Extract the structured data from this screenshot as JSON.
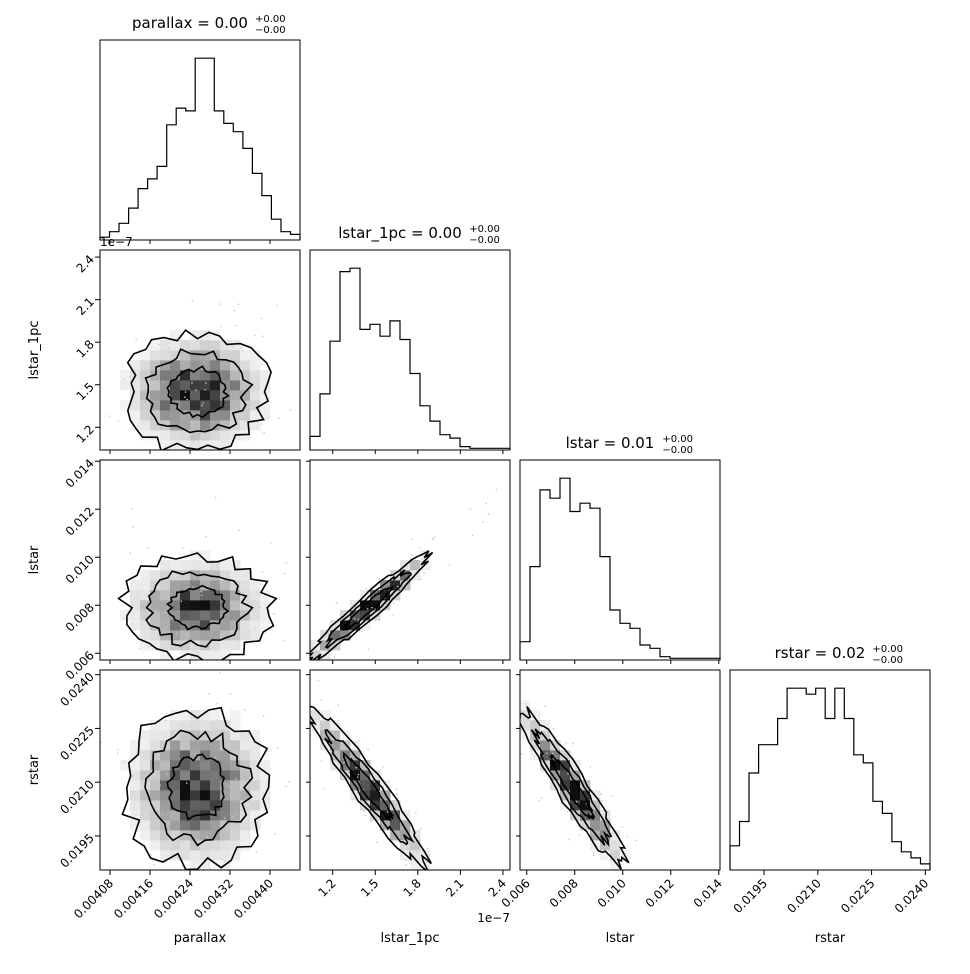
{
  "chart_data": {
    "type": "corner",
    "parameters": [
      {
        "key": "parallax",
        "label": "parallax",
        "title_main": "parallax = 0.00",
        "title_up": "+0.00",
        "title_low": "−0.00",
        "range": [
          0.00406,
          0.00446
        ],
        "ticks": [
          {
            "v": 0.00408,
            "t": "0.00408"
          },
          {
            "v": 0.00416,
            "t": "0.00416"
          },
          {
            "v": 0.00424,
            "t": "0.00424"
          },
          {
            "v": 0.00432,
            "t": "0.00432"
          },
          {
            "v": 0.0044,
            "t": "0.00440"
          }
        ],
        "offset_text": "",
        "hist": [
          2,
          6,
          12,
          23,
          37,
          44,
          53,
          83,
          95,
          93,
          131,
          131,
          93,
          84,
          78,
          66,
          48,
          32,
          15,
          6,
          4
        ],
        "center": 0.004255,
        "sd": 6.2e-05
      },
      {
        "key": "lstar_1pc",
        "label": "lstar_1pc",
        "title_main": "lstar_1pc = 0.00",
        "title_up": "+0.00",
        "title_low": "−0.00",
        "range": [
          1.04e-07,
          2.45e-07
        ],
        "ticks": [
          {
            "v": 1.2e-07,
            "t": "1.2"
          },
          {
            "v": 1.5e-07,
            "t": "1.5"
          },
          {
            "v": 1.8e-07,
            "t": "1.8"
          },
          {
            "v": 2.1e-07,
            "t": "2.1"
          },
          {
            "v": 2.4e-07,
            "t": "2.4"
          }
        ],
        "offset_text": "1e−7",
        "hist": [
          8,
          33,
          64,
          105,
          107,
          71,
          74,
          67,
          76,
          65,
          45,
          26,
          17,
          9,
          7,
          2,
          1,
          1,
          1,
          1
        ],
        "center": 1.45e-07,
        "sd": 1.8e-08
      },
      {
        "key": "lstar",
        "label": "lstar",
        "title_main": "lstar = 0.01",
        "title_up": "+0.00",
        "title_low": "−0.00",
        "range": [
          0.00572,
          0.01405
        ],
        "ticks": [
          {
            "v": 0.006,
            "t": "0.006"
          },
          {
            "v": 0.008,
            "t": "0.008"
          },
          {
            "v": 0.01,
            "t": "0.010"
          },
          {
            "v": 0.012,
            "t": "0.012"
          },
          {
            "v": 0.014,
            "t": "0.014"
          }
        ],
        "offset_text": "",
        "hist": [
          11,
          56,
          102,
          97,
          109,
          89,
          94,
          91,
          62,
          30,
          22,
          19,
          9,
          7,
          2,
          1,
          1,
          1,
          1,
          1
        ],
        "center": 0.0079,
        "sd": 0.00095
      },
      {
        "key": "rstar",
        "label": "rstar",
        "title_main": "rstar = 0.02",
        "title_up": "+0.00",
        "title_low": "−0.00",
        "range": [
          0.01855,
          0.02413
        ],
        "ticks": [
          {
            "v": 0.0195,
            "t": "0.0195"
          },
          {
            "v": 0.021,
            "t": "0.0210"
          },
          {
            "v": 0.0225,
            "t": "0.0225"
          },
          {
            "v": 0.024,
            "t": "0.0240"
          }
        ],
        "offset_text": "",
        "hist": [
          12,
          24,
          48,
          62,
          62,
          75,
          90,
          90,
          87,
          90,
          75,
          90,
          75,
          57,
          53,
          34,
          28,
          14,
          9,
          6,
          3
        ],
        "center": 0.02085,
        "sd": 0.00095
      }
    ],
    "correlations": [
      [
        1,
        0.0,
        0.0,
        0.0
      ],
      [
        0.0,
        1,
        0.96,
        -0.95
      ],
      [
        0.0,
        0.96,
        1,
        -0.94
      ],
      [
        0.0,
        -0.95,
        -0.94,
        1
      ]
    ],
    "y_offset_text": "1e−7"
  }
}
